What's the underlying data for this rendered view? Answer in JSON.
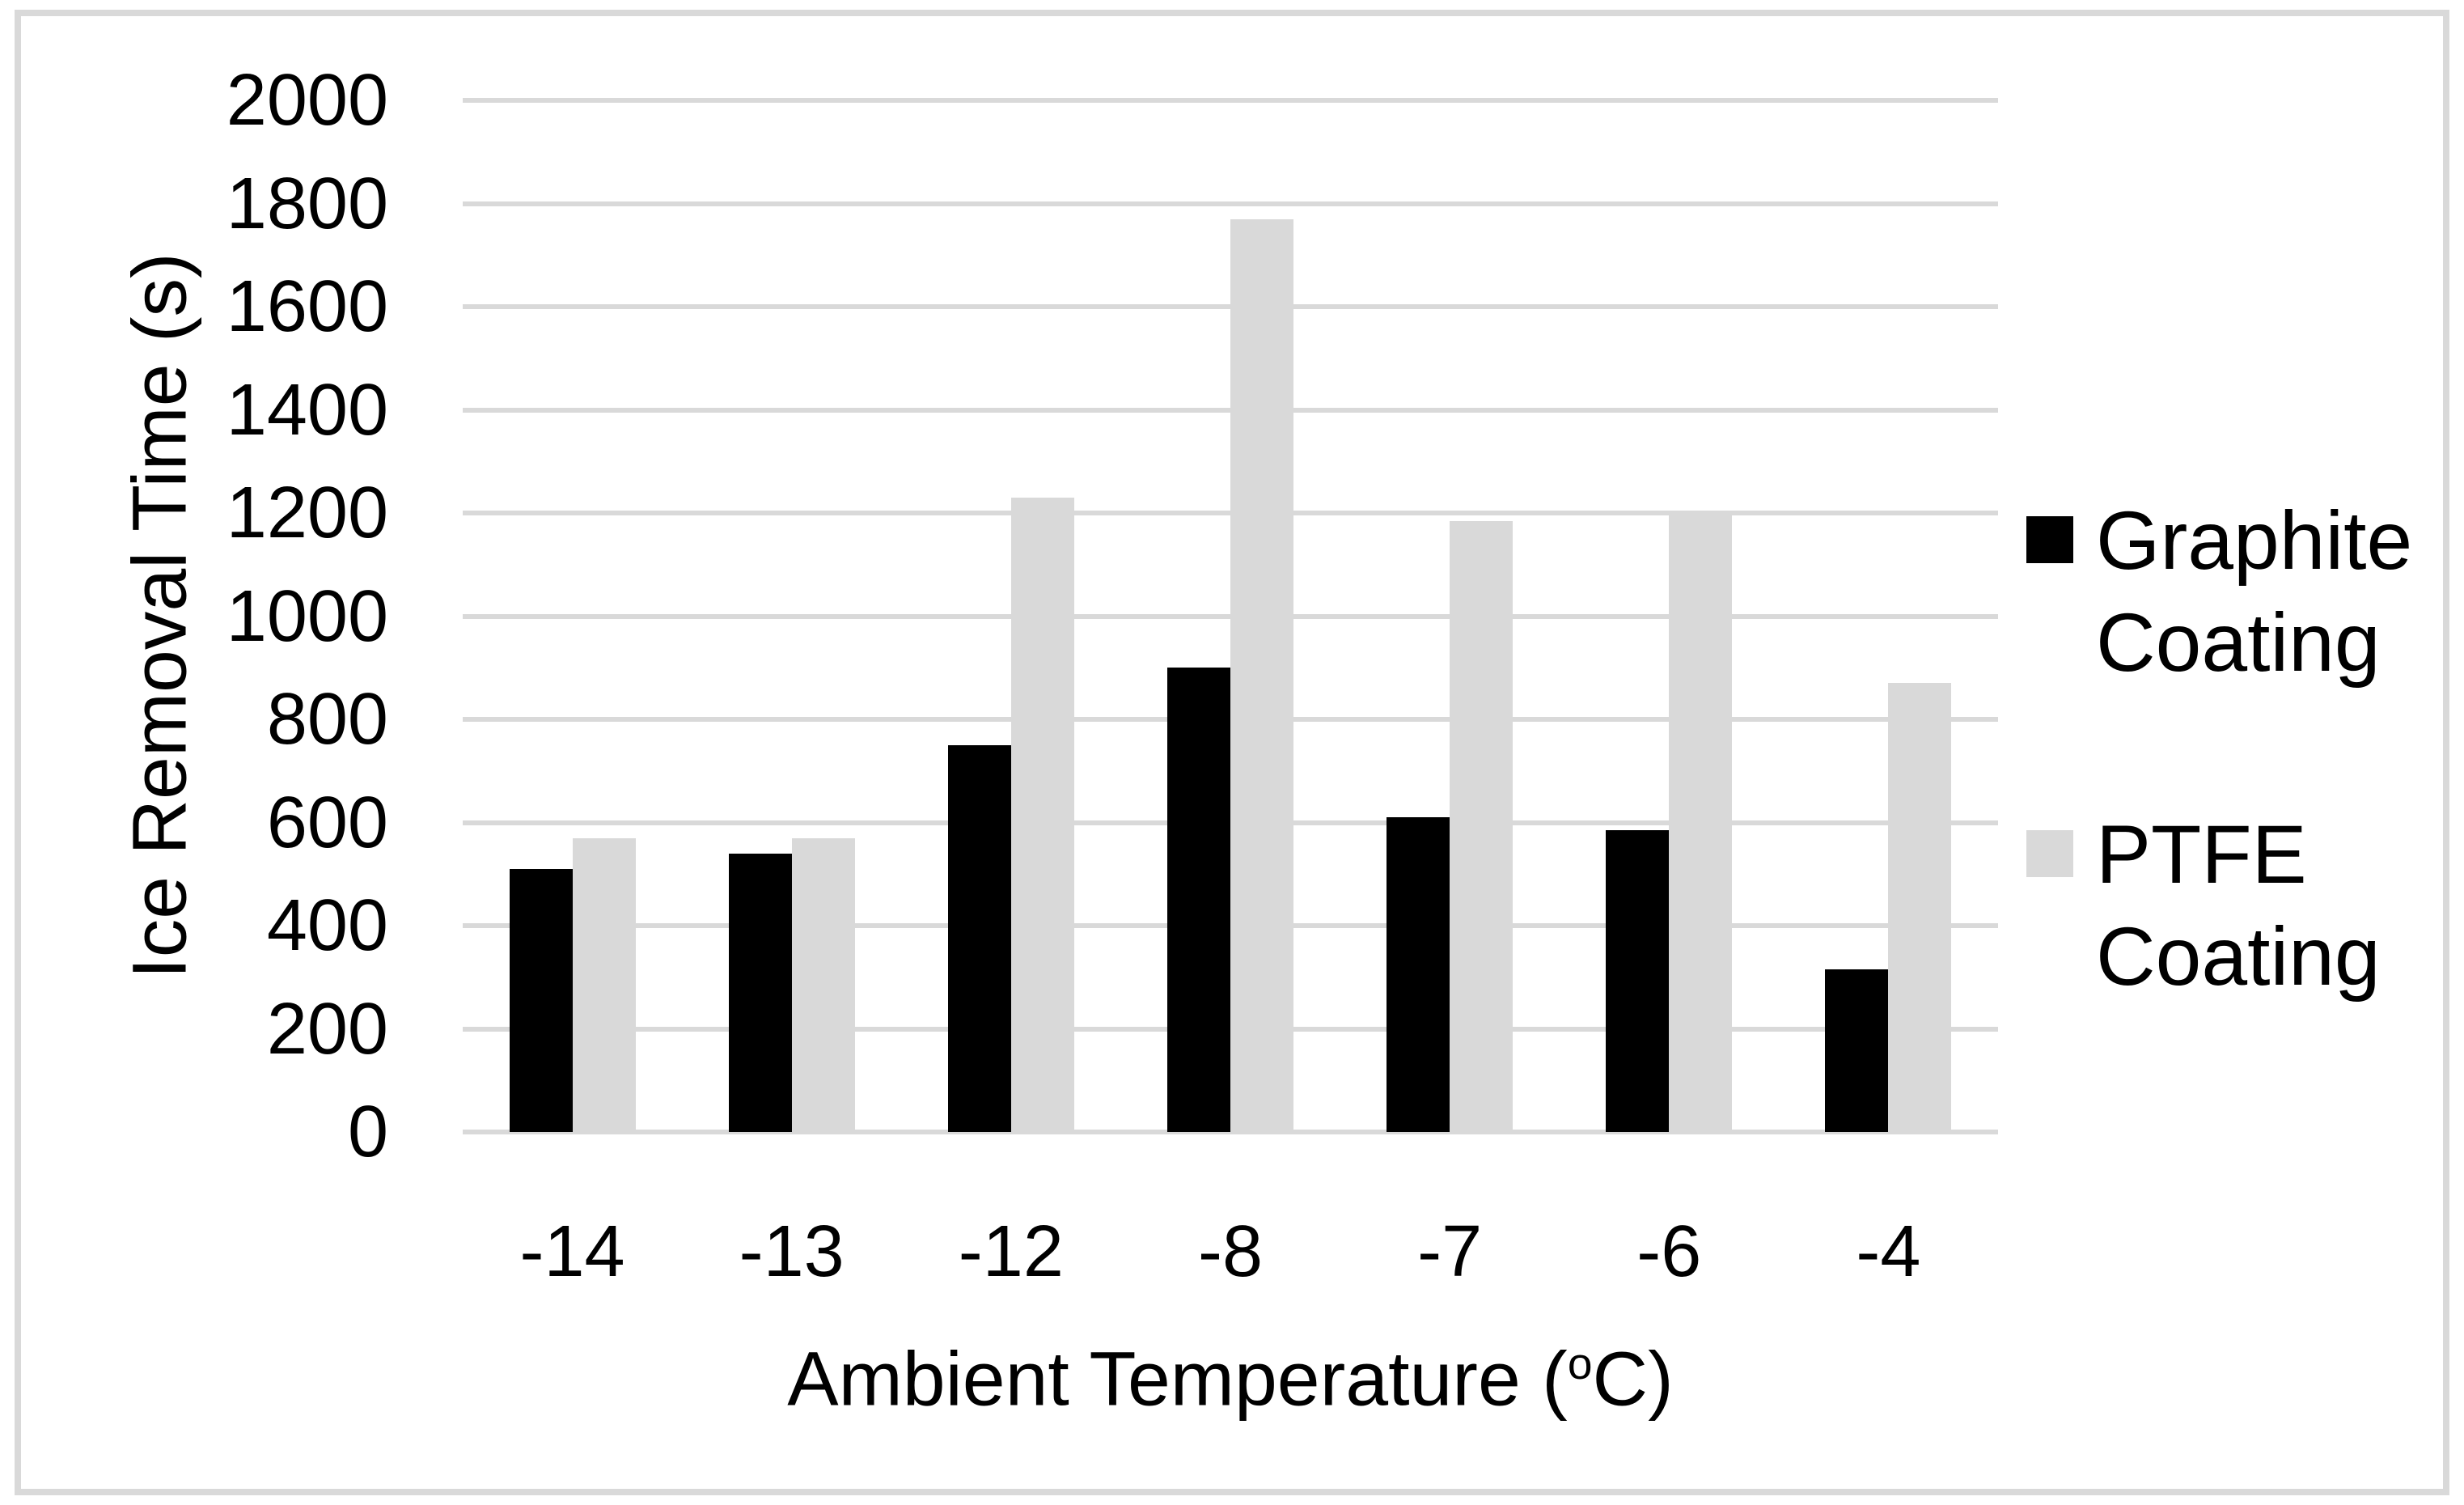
{
  "chart_data": {
    "type": "bar",
    "categories": [
      "-14",
      "-13",
      "-12",
      "-8",
      "-7",
      "-6",
      "-4"
    ],
    "series": [
      {
        "name": "Graphite Coating",
        "color": "#000000",
        "values": [
          510,
          540,
          750,
          900,
          610,
          585,
          315
        ]
      },
      {
        "name": "PTFE Coating",
        "color": "#d9d9d9",
        "values": [
          570,
          570,
          1230,
          1770,
          1185,
          1200,
          870
        ]
      }
    ],
    "title": "",
    "xlabel_prefix": "Ambient Temperature (",
    "xlabel_sup": "o",
    "xlabel_suffix": "C)",
    "ylabel": "Ice Removal Time (s)",
    "ylim": [
      0,
      2000
    ],
    "yticks": [
      0,
      200,
      400,
      600,
      800,
      1000,
      1200,
      1400,
      1600,
      1800,
      2000
    ],
    "grid": true,
    "legend_position": "right"
  },
  "styles": {
    "background": "#ffffff",
    "border_color": "#d9d9d9",
    "grid_color": "#d9d9d9",
    "text_color": "#000000"
  }
}
